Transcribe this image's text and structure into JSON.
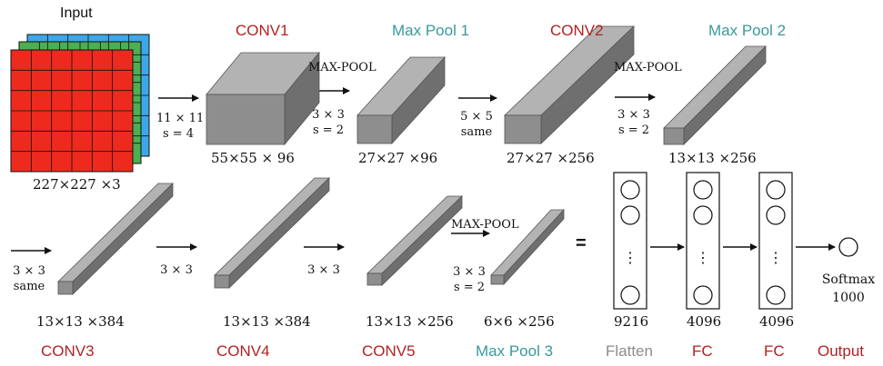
{
  "input": {
    "title": "Input",
    "dims": "227×227 ×3"
  },
  "row1": {
    "conv1": {
      "name": "CONV1",
      "dims": "55×55 × 96",
      "arrow_label": [
        "11 × 11",
        "s = 4"
      ]
    },
    "pool1": {
      "name": "Max Pool 1",
      "dims": "27×27 ×96",
      "op": "MAX-POOL",
      "arrow_label": [
        "3 × 3",
        "s = 2"
      ]
    },
    "conv2": {
      "name": "CONV2",
      "dims": "27×27 ×256",
      "arrow_label": [
        "5 × 5",
        "same"
      ]
    },
    "pool2": {
      "name": "Max Pool 2",
      "dims": "13×13 ×256",
      "op": "MAX-POOL",
      "arrow_label": [
        "3 × 3",
        "s = 2"
      ]
    }
  },
  "row2": {
    "conv3": {
      "name": "CONV3",
      "dims": "13×13 ×384",
      "arrow_label": [
        "3 × 3",
        "same"
      ]
    },
    "conv4": {
      "name": "CONV4",
      "dims": "13×13 ×384",
      "arrow_label": [
        "3 × 3"
      ]
    },
    "conv5": {
      "name": "CONV5",
      "dims": "13×13 ×256",
      "arrow_label": [
        "3 × 3"
      ]
    },
    "pool3": {
      "name": "Max Pool 3",
      "dims": "6×6 ×256",
      "op": "MAX-POOL",
      "arrow_label": [
        "3 × 3",
        "s = 2"
      ]
    },
    "equals": "=",
    "flatten": {
      "name": "Flatten",
      "size": "9216",
      "dots": "⋮"
    },
    "fc1": {
      "name": "FC",
      "size": "4096",
      "dots": "⋮"
    },
    "fc2": {
      "name": "FC",
      "size": "4096",
      "dots": "⋮"
    },
    "output": {
      "name": "Output",
      "label": [
        "Softmax",
        "1000"
      ]
    }
  },
  "colors": {
    "red_label": "#b22222",
    "teal_label": "#3a9a9a",
    "grey_label": "#8c8c8c",
    "grid_red": "#ee2a1f",
    "grid_green": "#4caf50",
    "grid_blue": "#3da7e8",
    "box_front": "#8e8e8e",
    "box_top": "#b3b3b3",
    "box_side": "#6f6f6f"
  }
}
